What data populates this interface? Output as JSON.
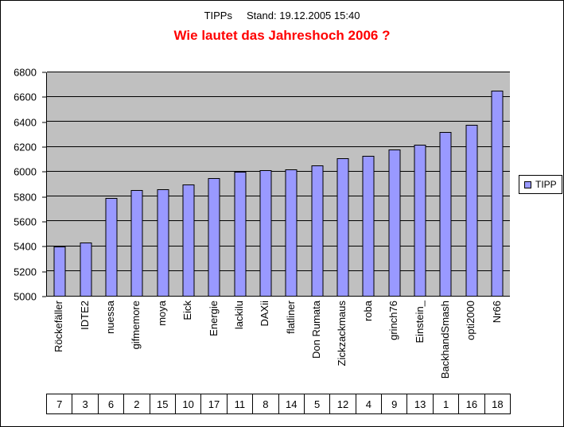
{
  "header": {
    "subtitle": "TIPPs     Stand: 19.12.2005 15:40",
    "title": "Wie lautet das Jahreshoch 2006 ?",
    "title_color": "#FF0000"
  },
  "legend": {
    "label": "TIPP",
    "swatch_color": "#9999FF"
  },
  "chart_data": {
    "type": "bar",
    "title": "Wie lautet das Jahreshoch 2006 ?",
    "subtitle": "TIPPs Stand: 19.12.2005 15:40",
    "categories": [
      "Röckefäller",
      "IDTE2",
      "nuessa",
      "gifmemore",
      "moya",
      "Eick",
      "Energie",
      "lackilu",
      "DAXii",
      "flatliner",
      "Don Rumata",
      "Zickzackmaus",
      "roba",
      "grinch76",
      "Einstein_",
      "BackhandSmash",
      "opti2000",
      "Nr66"
    ],
    "values": [
      5400,
      5430,
      5790,
      5850,
      5860,
      5900,
      5950,
      6000,
      6010,
      6020,
      6050,
      6110,
      6130,
      6180,
      6220,
      6320,
      6380,
      6650
    ],
    "table_row": [
      7,
      3,
      6,
      2,
      15,
      10,
      17,
      11,
      8,
      14,
      5,
      12,
      4,
      9,
      13,
      1,
      16,
      18
    ],
    "ylim": [
      5000,
      6800
    ],
    "yticks": [
      5000,
      5200,
      5400,
      5600,
      5800,
      6000,
      6200,
      6400,
      6600,
      6800
    ],
    "ytick_interval": 200,
    "xlabel": "",
    "ylabel": "",
    "legend_entries": [
      "TIPP"
    ],
    "legend_position": "right",
    "grid": "horizontal",
    "bar_color": "#9999FF",
    "bar_border_color": "#000000",
    "plot_bg": "#C0C0C0"
  }
}
